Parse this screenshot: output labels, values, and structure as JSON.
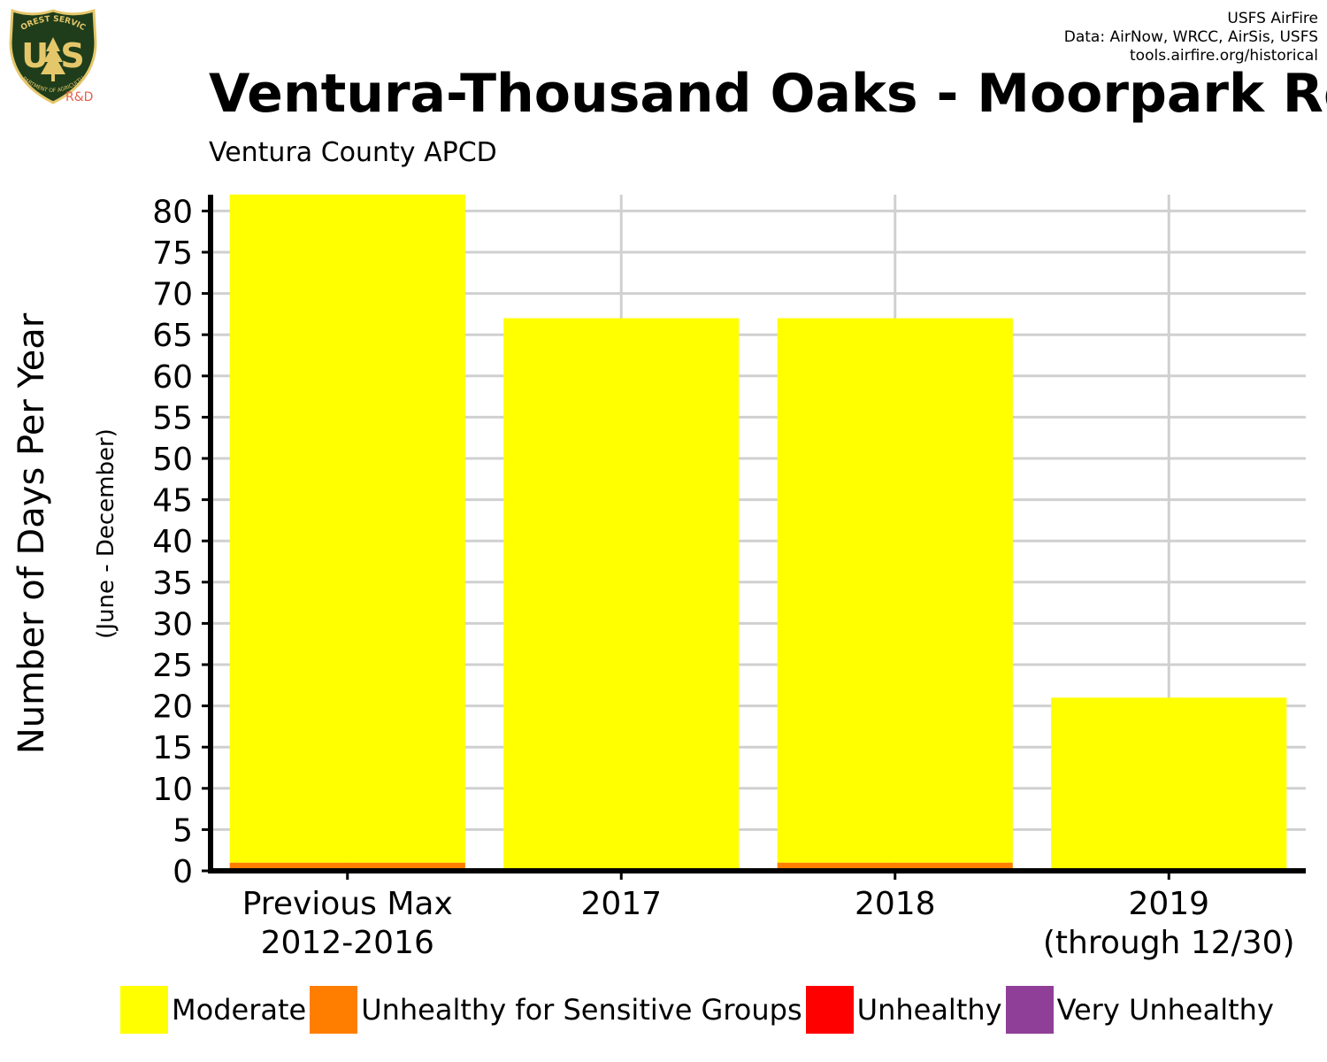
{
  "credits": {
    "line1": "USFS AirFire",
    "line2": "Data: AirNow, WRCC, AirSis, USFS",
    "line3": "tools.airfire.org/historical"
  },
  "logo": {
    "top_text": "FOREST SERVICE",
    "letters": "U S",
    "bottom_text": "DEPARTMENT OF AGRICULTURE",
    "rd_text": "R&D",
    "colors": {
      "shield": "#1f3d1a",
      "gold": "#e5c76b",
      "rd": "#e8604c"
    }
  },
  "title": "Ventura-Thousand Oaks - Moorpark Ro",
  "subtitle": "Ventura County  APCD",
  "chart_data": {
    "type": "bar",
    "stacked": true,
    "title": "Ventura-Thousand Oaks - Moorpark Ro",
    "subtitle": "Ventura County  APCD",
    "ylabel": "Number of Days Per Year",
    "ylabel_sub": "(June - December)",
    "xlabel": "",
    "categories": [
      [
        "Previous Max",
        "2012-2016"
      ],
      [
        "2017"
      ],
      [
        "2018"
      ],
      [
        "2019",
        "(through 12/30)"
      ]
    ],
    "series": [
      {
        "name": "Unhealthy for Sensitive Groups",
        "color": "#ff7e00",
        "values": [
          1,
          0,
          1,
          0
        ]
      },
      {
        "name": "Moderate",
        "color": "#ffff00",
        "values": [
          81,
          67,
          66,
          21
        ]
      },
      {
        "name": "Unhealthy",
        "color": "#ff0000",
        "values": [
          0,
          0,
          0,
          0
        ]
      },
      {
        "name": "Very Unhealthy",
        "color": "#8f3f97",
        "values": [
          0,
          0,
          0,
          0
        ]
      }
    ],
    "ylim": [
      0,
      82
    ],
    "yticks": [
      0,
      5,
      10,
      15,
      20,
      25,
      30,
      35,
      40,
      45,
      50,
      55,
      60,
      65,
      70,
      75,
      80
    ],
    "grid": true,
    "legend_position": "bottom"
  },
  "legend": [
    {
      "label": "Moderate",
      "color": "#ffff00"
    },
    {
      "label": "Unhealthy for Sensitive Groups",
      "color": "#ff7e00"
    },
    {
      "label": "Unhealthy",
      "color": "#ff0000"
    },
    {
      "label": "Very Unhealthy",
      "color": "#8f3f97"
    }
  ]
}
